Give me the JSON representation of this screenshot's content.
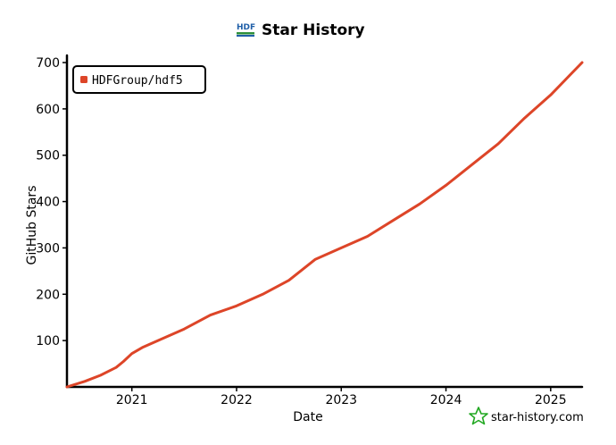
{
  "chart_data": {
    "type": "line",
    "title": "Star History",
    "xlabel": "Date",
    "ylabel": "GitHub Stars",
    "x_range": [
      2020.38,
      2025.3
    ],
    "ylim": [
      0,
      700
    ],
    "y_ticks": [
      100,
      200,
      300,
      400,
      500,
      600,
      700
    ],
    "x_ticks": [
      {
        "label": "2021",
        "value": 2021
      },
      {
        "label": "2022",
        "value": 2022
      },
      {
        "label": "2023",
        "value": 2023
      },
      {
        "label": "2024",
        "value": 2024
      },
      {
        "label": "2025",
        "value": 2025
      }
    ],
    "legend_position": "top-left",
    "grid": false,
    "series": [
      {
        "name": "HDFGroup/hdf5",
        "color": "#dd4528",
        "x": [
          2020.38,
          2020.55,
          2020.7,
          2020.85,
          2020.92,
          2021.0,
          2021.1,
          2021.25,
          2021.5,
          2021.75,
          2022.0,
          2022.25,
          2022.5,
          2022.75,
          2023.0,
          2023.25,
          2023.5,
          2023.75,
          2024.0,
          2024.25,
          2024.5,
          2024.75,
          2025.0,
          2025.3
        ],
        "y": [
          0,
          12,
          25,
          42,
          55,
          72,
          85,
          100,
          125,
          155,
          175,
          200,
          230,
          275,
          300,
          325,
          360,
          395,
          435,
          480,
          525,
          580,
          630,
          700
        ]
      }
    ]
  },
  "watermark": {
    "text": "star-history.com",
    "icon": "star-outline-icon",
    "color": "#22a822"
  },
  "title_logo": {
    "icon": "hdf-logo-icon"
  }
}
